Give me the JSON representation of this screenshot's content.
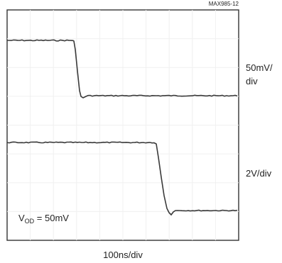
{
  "chart_data": {
    "type": "line",
    "figure_id": "MAX985-12",
    "x_scale_label": "100ns/div",
    "series": [
      {
        "scale": "50mV/div",
        "scale_line1": "50mV/",
        "scale_line2": "div"
      },
      {
        "scale": "2V/div"
      }
    ],
    "annotation": {
      "prefix": "V",
      "subscript": "OD",
      "suffix": " = 50mV"
    },
    "grid": true
  }
}
